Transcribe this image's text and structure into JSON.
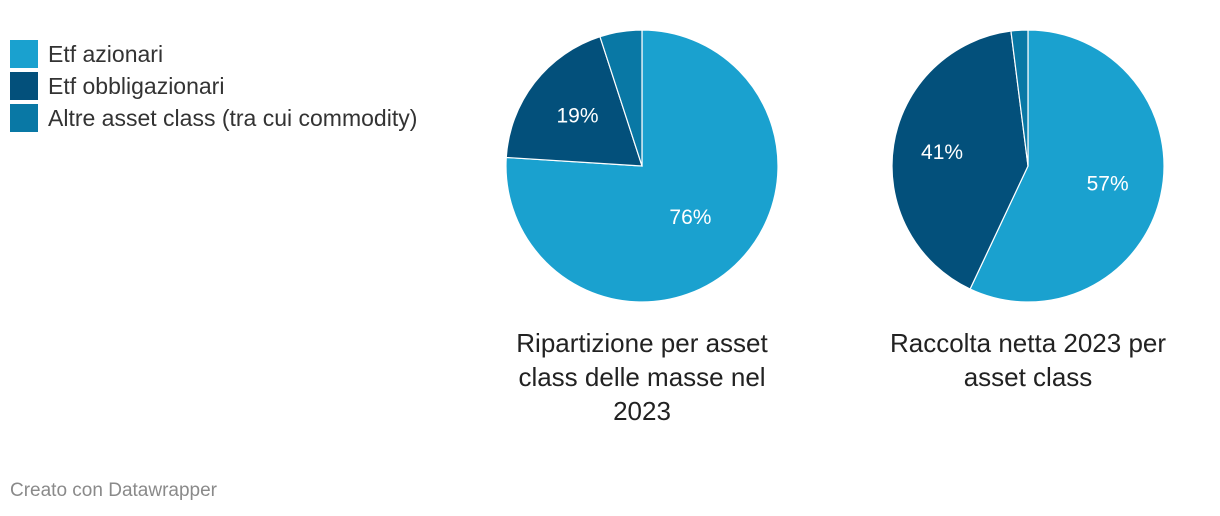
{
  "legend": {
    "items": [
      {
        "label": "Etf azionari",
        "color": "#1aa1cf"
      },
      {
        "label": "Etf obbligazionari",
        "color": "#03507b"
      },
      {
        "label": "Altre asset class (tra cui commodity)",
        "color": "#0978a5"
      }
    ]
  },
  "chart_data": [
    {
      "type": "pie",
      "title": "Ripartizione per asset class delle masse nel 2023",
      "categories": [
        "Etf azionari",
        "Etf obbligazionari",
        "Altre asset class (tra cui commodity)"
      ],
      "values": [
        76,
        19,
        5
      ],
      "data_labels": [
        "76%",
        "19%",
        ""
      ],
      "colors": [
        "#1aa1cf",
        "#03507b",
        "#0978a5"
      ],
      "legend": "top-left"
    },
    {
      "type": "pie",
      "title": "Raccolta netta 2023 per asset class",
      "categories": [
        "Etf azionari",
        "Etf obbligazionari",
        "Altre asset class (tra cui commodity)"
      ],
      "values": [
        57,
        41,
        2
      ],
      "data_labels": [
        "57%",
        "41%",
        ""
      ],
      "colors": [
        "#1aa1cf",
        "#03507b",
        "#0978a5"
      ],
      "legend": "top-left"
    }
  ],
  "footer": {
    "credit": "Creato con Datawrapper"
  }
}
